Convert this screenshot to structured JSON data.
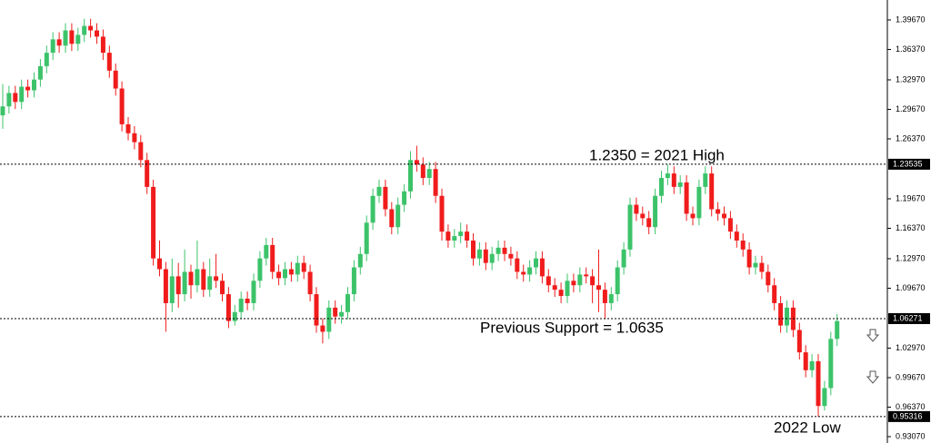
{
  "chart_data": {
    "type": "candlestick",
    "up_color": "#3cc36a",
    "down_color": "#f01c1c",
    "ylim": [
      0.9236,
      1.419
    ],
    "yticks": [
      {
        "value": 1.3967,
        "label": "1.39670"
      },
      {
        "value": 1.3637,
        "label": "1.36370"
      },
      {
        "value": 1.3297,
        "label": "1.32970"
      },
      {
        "value": 1.2967,
        "label": "1.29670"
      },
      {
        "value": 1.2637,
        "label": "1.26370"
      },
      {
        "value": 1.1967,
        "label": "1.19670"
      },
      {
        "value": 1.1637,
        "label": "1.16370"
      },
      {
        "value": 1.1297,
        "label": "1.12970"
      },
      {
        "value": 1.0967,
        "label": "1.09670"
      },
      {
        "value": 1.0297,
        "label": "1.02970"
      },
      {
        "value": 0.9967,
        "label": "0.99670"
      },
      {
        "value": 0.9637,
        "label": "0.96370"
      },
      {
        "value": 0.9307,
        "label": "0.93070"
      }
    ],
    "levels": [
      {
        "value": 1.23535,
        "label": "1.23535"
      },
      {
        "value": 1.06271,
        "label": "1.06271"
      },
      {
        "value": 0.95316,
        "label": "0.95316"
      }
    ],
    "annotations": [
      "1.2350 = 2021 High",
      "Previous Support = 1.0635",
      "2022 Low"
    ],
    "series": [
      {
        "open": [
          1.29,
          1.3,
          1.315,
          1.305,
          1.322,
          1.318,
          1.33,
          1.345,
          1.36,
          1.375,
          1.368,
          1.385,
          1.37,
          1.38,
          1.39,
          1.385,
          1.378,
          1.36,
          1.34,
          1.32,
          1.28,
          1.27,
          1.26,
          1.24,
          1.21,
          1.13,
          1.118,
          1.08,
          1.11,
          1.09,
          1.115,
          1.1,
          1.118,
          1.095,
          1.11,
          1.105,
          1.09,
          1.06,
          1.07,
          1.085,
          1.08,
          1.105,
          1.13,
          1.145,
          1.115,
          1.108,
          1.118,
          1.112,
          1.125,
          1.115,
          1.09,
          1.055,
          1.048,
          1.075,
          1.065,
          1.07,
          1.09,
          1.12,
          1.135,
          1.17,
          1.2,
          1.21,
          1.185,
          1.165,
          1.19,
          1.205,
          1.24,
          1.235,
          1.22,
          1.23,
          1.2,
          1.16,
          1.15,
          1.155,
          1.16,
          1.15,
          1.13,
          1.14,
          1.125,
          1.135,
          1.142,
          1.135,
          1.13,
          1.115,
          1.112,
          1.12,
          1.13,
          1.11,
          1.1,
          1.095,
          1.088,
          1.105,
          1.1,
          1.112,
          1.11,
          1.1,
          1.095,
          1.08,
          1.09,
          1.12,
          1.14,
          1.19,
          1.18,
          1.175,
          1.165,
          1.2,
          1.22,
          1.225,
          1.21,
          1.215,
          1.18,
          1.175,
          1.21,
          1.225,
          1.185,
          1.18,
          1.175,
          1.16,
          1.15,
          1.14,
          1.12,
          1.125,
          1.115,
          1.1,
          1.08,
          1.055,
          1.075,
          1.05,
          1.025,
          1.005,
          1.015,
          0.965,
          0.985,
          1.04
        ],
        "high": [
          1.325,
          1.323,
          1.323,
          1.33,
          1.33,
          1.338,
          1.353,
          1.368,
          1.383,
          1.383,
          1.393,
          1.393,
          1.388,
          1.398,
          1.398,
          1.393,
          1.386,
          1.368,
          1.348,
          1.328,
          1.288,
          1.278,
          1.268,
          1.248,
          1.218,
          1.15,
          1.126,
          1.13,
          1.125,
          1.14,
          1.123,
          1.15,
          1.126,
          1.13,
          1.135,
          1.113,
          1.098,
          1.078,
          1.093,
          1.093,
          1.113,
          1.138,
          1.153,
          1.153,
          1.123,
          1.126,
          1.126,
          1.133,
          1.133,
          1.123,
          1.098,
          1.063,
          1.083,
          1.083,
          1.078,
          1.098,
          1.128,
          1.143,
          1.178,
          1.208,
          1.218,
          1.218,
          1.193,
          1.198,
          1.213,
          1.25,
          1.256,
          1.243,
          1.238,
          1.238,
          1.208,
          1.168,
          1.163,
          1.17,
          1.168,
          1.158,
          1.148,
          1.148,
          1.143,
          1.15,
          1.15,
          1.143,
          1.138,
          1.123,
          1.128,
          1.138,
          1.138,
          1.118,
          1.108,
          1.103,
          1.113,
          1.113,
          1.12,
          1.12,
          1.118,
          1.14,
          1.103,
          1.098,
          1.128,
          1.148,
          1.198,
          1.198,
          1.188,
          1.183,
          1.208,
          1.228,
          1.235,
          1.233,
          1.223,
          1.223,
          1.188,
          1.218,
          1.233,
          1.233,
          1.193,
          1.188,
          1.183,
          1.168,
          1.158,
          1.148,
          1.133,
          1.133,
          1.123,
          1.108,
          1.088,
          1.083,
          1.083,
          1.058,
          1.033,
          1.023,
          1.023,
          0.993,
          1.048,
          1.068
        ],
        "low": [
          1.275,
          1.292,
          1.297,
          1.297,
          1.31,
          1.31,
          1.322,
          1.337,
          1.352,
          1.36,
          1.36,
          1.362,
          1.362,
          1.372,
          1.377,
          1.37,
          1.352,
          1.332,
          1.312,
          1.272,
          1.262,
          1.252,
          1.232,
          1.202,
          1.122,
          1.11,
          1.048,
          1.07,
          1.075,
          1.082,
          1.085,
          1.092,
          1.087,
          1.087,
          1.097,
          1.082,
          1.052,
          1.055,
          1.062,
          1.072,
          1.072,
          1.097,
          1.122,
          1.107,
          1.1,
          1.1,
          1.104,
          1.104,
          1.107,
          1.082,
          1.047,
          1.035,
          1.04,
          1.057,
          1.057,
          1.062,
          1.082,
          1.112,
          1.127,
          1.162,
          1.192,
          1.177,
          1.157,
          1.157,
          1.182,
          1.197,
          1.227,
          1.212,
          1.212,
          1.192,
          1.15,
          1.142,
          1.142,
          1.147,
          1.142,
          1.122,
          1.122,
          1.117,
          1.117,
          1.127,
          1.127,
          1.122,
          1.107,
          1.104,
          1.104,
          1.112,
          1.102,
          1.092,
          1.087,
          1.08,
          1.08,
          1.092,
          1.092,
          1.102,
          1.08,
          1.07,
          1.062,
          1.072,
          1.082,
          1.112,
          1.132,
          1.172,
          1.167,
          1.157,
          1.157,
          1.192,
          1.212,
          1.202,
          1.202,
          1.172,
          1.167,
          1.167,
          1.202,
          1.177,
          1.172,
          1.167,
          1.152,
          1.142,
          1.132,
          1.112,
          1.112,
          1.107,
          1.092,
          1.072,
          1.047,
          1.047,
          1.042,
          1.017,
          0.997,
          0.997,
          0.953,
          0.96,
          0.977,
          1.032
        ],
        "close": [
          1.3,
          1.315,
          1.305,
          1.322,
          1.318,
          1.33,
          1.345,
          1.36,
          1.375,
          1.368,
          1.385,
          1.37,
          1.38,
          1.39,
          1.385,
          1.378,
          1.36,
          1.34,
          1.32,
          1.28,
          1.27,
          1.26,
          1.24,
          1.21,
          1.13,
          1.118,
          1.08,
          1.11,
          1.09,
          1.115,
          1.1,
          1.118,
          1.095,
          1.11,
          1.105,
          1.09,
          1.06,
          1.07,
          1.085,
          1.08,
          1.105,
          1.13,
          1.145,
          1.115,
          1.108,
          1.118,
          1.112,
          1.125,
          1.115,
          1.09,
          1.055,
          1.048,
          1.075,
          1.065,
          1.07,
          1.09,
          1.12,
          1.135,
          1.17,
          1.2,
          1.21,
          1.185,
          1.165,
          1.19,
          1.205,
          1.24,
          1.235,
          1.22,
          1.23,
          1.2,
          1.16,
          1.15,
          1.155,
          1.16,
          1.15,
          1.13,
          1.14,
          1.125,
          1.135,
          1.142,
          1.135,
          1.13,
          1.115,
          1.112,
          1.12,
          1.13,
          1.11,
          1.1,
          1.095,
          1.088,
          1.105,
          1.1,
          1.112,
          1.11,
          1.1,
          1.095,
          1.08,
          1.09,
          1.12,
          1.14,
          1.19,
          1.18,
          1.175,
          1.165,
          1.2,
          1.22,
          1.225,
          1.21,
          1.215,
          1.18,
          1.175,
          1.21,
          1.225,
          1.185,
          1.18,
          1.175,
          1.16,
          1.15,
          1.14,
          1.12,
          1.125,
          1.115,
          1.1,
          1.08,
          1.055,
          1.075,
          1.05,
          1.025,
          1.005,
          1.015,
          0.965,
          0.985,
          1.04,
          1.06
        ]
      }
    ]
  }
}
